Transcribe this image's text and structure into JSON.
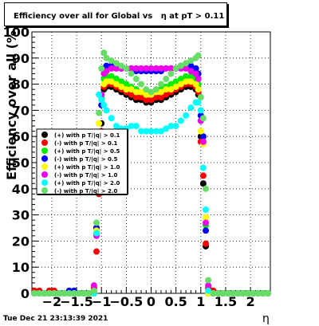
{
  "header": {
    "title": "Efficiency over all for Global vs   η at pT > 0.11"
  },
  "footer": {
    "timestamp": "Tue Dec 21 23:13:39 2021"
  },
  "chart_data": {
    "type": "scatter",
    "title": "Efficiency over all for Global vs   η at pT > 0.11",
    "xlabel": "η",
    "ylabel": "Efficiency over all (%)",
    "xlim": [
      -2.4,
      2.4
    ],
    "ylim": [
      0,
      100
    ],
    "xticks": [
      -2,
      -1.5,
      -1,
      -0.5,
      0,
      0.5,
      1,
      1.5,
      2
    ],
    "xtick_labels": [
      "−2",
      "−1.5",
      "−1",
      "−0.5",
      "0",
      "0.5",
      "1",
      "1.5",
      "2"
    ],
    "yticks": [
      0,
      10,
      20,
      30,
      40,
      50,
      60,
      70,
      80,
      90,
      100
    ],
    "ytick_labels": [
      "0",
      "10",
      "20",
      "30",
      "40",
      "50",
      "60",
      "70",
      "80",
      "90",
      "100"
    ],
    "grid": true,
    "legend_position": "left-middle",
    "series": [
      {
        "name": "(+) with p T/|q| > 0.1",
        "color": "#000000",
        "x": [
          -2.35,
          -2.25,
          -2.15,
          -2.05,
          -1.95,
          -1.85,
          -1.75,
          -1.65,
          -1.55,
          -1.45,
          -1.35,
          -1.25,
          -1.15,
          -1.1,
          -1.05,
          -1.0,
          -0.95,
          -0.9,
          -0.8,
          -0.7,
          -0.6,
          -0.5,
          -0.4,
          -0.3,
          -0.2,
          -0.1,
          0.0,
          0.1,
          0.2,
          0.3,
          0.4,
          0.5,
          0.6,
          0.7,
          0.8,
          0.9,
          0.95,
          1.0,
          1.05,
          1.1,
          1.15,
          1.25,
          1.35,
          1.45,
          1.55,
          1.65,
          1.75,
          1.85,
          1.95,
          2.05,
          2.15,
          2.25,
          2.35
        ],
        "y": [
          0,
          0,
          0,
          0,
          0,
          0,
          0,
          0,
          0,
          0,
          0,
          0,
          1,
          25,
          40,
          65,
          78,
          79,
          79,
          78,
          77,
          76,
          75,
          74,
          74,
          73,
          73,
          74,
          74,
          75,
          76,
          77,
          78,
          79,
          79,
          78,
          76,
          60,
          42,
          18,
          0,
          0,
          0,
          0,
          0,
          0,
          0,
          0,
          0,
          0,
          0,
          0,
          0
        ]
      },
      {
        "name": "(-) with p T/|q| > 0.1",
        "color": "#ff0000",
        "x": [
          -2.35,
          -2.25,
          -2.15,
          -2.05,
          -1.95,
          -1.85,
          -1.75,
          -1.65,
          -1.55,
          -1.45,
          -1.35,
          -1.25,
          -1.15,
          -1.1,
          -1.05,
          -1.0,
          -0.95,
          -0.9,
          -0.8,
          -0.7,
          -0.6,
          -0.5,
          -0.4,
          -0.3,
          -0.2,
          -0.1,
          0.0,
          0.1,
          0.2,
          0.3,
          0.4,
          0.5,
          0.6,
          0.7,
          0.8,
          0.9,
          0.95,
          1.0,
          1.05,
          1.1,
          1.15,
          1.25,
          1.35,
          1.45,
          1.55,
          1.65,
          1.75,
          1.85,
          1.95,
          2.05,
          2.15,
          2.25,
          2.35
        ],
        "y": [
          1,
          1,
          0,
          1,
          1,
          0,
          0,
          0,
          0,
          0,
          0,
          0,
          2,
          16,
          38,
          62,
          79,
          80,
          80,
          79,
          78,
          77,
          76,
          75,
          75,
          74,
          74,
          75,
          75,
          76,
          77,
          78,
          79,
          80,
          80,
          79,
          77,
          58,
          45,
          19,
          2,
          1,
          0,
          0,
          0,
          0,
          0,
          0,
          0,
          0,
          0,
          0,
          0
        ]
      },
      {
        "name": "(+) with p T/|q| > 0.5",
        "color": "#00ee00",
        "x": [
          -2.35,
          -2.25,
          -2.15,
          -2.05,
          -1.95,
          -1.85,
          -1.75,
          -1.65,
          -1.55,
          -1.45,
          -1.35,
          -1.25,
          -1.15,
          -1.1,
          -1.05,
          -1.0,
          -0.95,
          -0.9,
          -0.8,
          -0.7,
          -0.6,
          -0.5,
          -0.4,
          -0.3,
          -0.2,
          -0.1,
          0.0,
          0.1,
          0.2,
          0.3,
          0.4,
          0.5,
          0.6,
          0.7,
          0.8,
          0.9,
          0.95,
          1.0,
          1.05,
          1.1,
          1.15,
          1.25,
          1.35,
          1.45,
          1.55,
          1.65,
          1.75,
          1.85,
          1.95,
          2.05,
          2.15,
          2.25,
          2.35
        ],
        "y": [
          0,
          0,
          0,
          0,
          0,
          0,
          0,
          0,
          0,
          0,
          0,
          0,
          0,
          25,
          60,
          75,
          82,
          83,
          83,
          82,
          81,
          80,
          79,
          78,
          77,
          76,
          76,
          77,
          78,
          79,
          80,
          81,
          82,
          83,
          83,
          82,
          80,
          66,
          58,
          26,
          0,
          0,
          0,
          0,
          0,
          0,
          0,
          0,
          0,
          0,
          0,
          0,
          0
        ]
      },
      {
        "name": "(-) with p T/|q| > 0.5",
        "color": "#0000ff",
        "x": [
          -2.35,
          -2.25,
          -2.15,
          -2.05,
          -1.95,
          -1.85,
          -1.75,
          -1.65,
          -1.55,
          -1.45,
          -1.35,
          -1.25,
          -1.15,
          -1.1,
          -1.05,
          -1.0,
          -0.95,
          -0.9,
          -0.8,
          -0.7,
          -0.6,
          -0.5,
          -0.4,
          -0.3,
          -0.2,
          -0.1,
          0.0,
          0.1,
          0.2,
          0.3,
          0.4,
          0.5,
          0.6,
          0.7,
          0.8,
          0.9,
          0.95,
          1.0,
          1.05,
          1.1,
          1.15,
          1.25,
          1.35,
          1.45,
          1.55,
          1.65,
          1.75,
          1.85,
          1.95,
          2.05,
          2.15,
          2.25,
          2.35
        ],
        "y": [
          0,
          0,
          0,
          0,
          0,
          0,
          0,
          1,
          1,
          0,
          0,
          0,
          0,
          25,
          55,
          72,
          86,
          87,
          87,
          87,
          86,
          86,
          86,
          85,
          85,
          85,
          85,
          85,
          85,
          86,
          86,
          86,
          87,
          87,
          87,
          86,
          84,
          68,
          60,
          24,
          0,
          0,
          0,
          0,
          0,
          0,
          0,
          0,
          0,
          0,
          0,
          0,
          0
        ]
      },
      {
        "name": "(+) with p T/|q| > 1.0",
        "color": "#ffff00",
        "x": [
          -2.35,
          -2.25,
          -2.15,
          -2.05,
          -1.95,
          -1.85,
          -1.75,
          -1.65,
          -1.55,
          -1.45,
          -1.35,
          -1.25,
          -1.15,
          -1.1,
          -1.05,
          -1.0,
          -0.95,
          -0.9,
          -0.8,
          -0.7,
          -0.6,
          -0.5,
          -0.4,
          -0.3,
          -0.2,
          -0.1,
          0.0,
          0.1,
          0.2,
          0.3,
          0.4,
          0.5,
          0.6,
          0.7,
          0.8,
          0.9,
          0.95,
          1.0,
          1.05,
          1.1,
          1.15,
          1.25,
          1.35,
          1.45,
          1.55,
          1.65,
          1.75,
          1.85,
          1.95,
          2.05,
          2.15,
          2.25,
          2.35
        ],
        "y": [
          0,
          0,
          0,
          0,
          0,
          0,
          0,
          0,
          0,
          0,
          0,
          0,
          0,
          24,
          65,
          74,
          80,
          81,
          81,
          80,
          79,
          78,
          78,
          77,
          77,
          76,
          76,
          77,
          77,
          78,
          78,
          79,
          80,
          81,
          81,
          80,
          78,
          62,
          57,
          29,
          0,
          0,
          0,
          0,
          0,
          0,
          0,
          0,
          0,
          0,
          0,
          0,
          0
        ]
      },
      {
        "name": "(-) with p T/|q| > 1.0",
        "color": "#ee00ee",
        "x": [
          -2.35,
          -2.25,
          -2.15,
          -2.05,
          -1.95,
          -1.85,
          -1.75,
          -1.65,
          -1.55,
          -1.45,
          -1.35,
          -1.25,
          -1.15,
          -1.1,
          -1.05,
          -1.0,
          -0.95,
          -0.9,
          -0.8,
          -0.7,
          -0.6,
          -0.5,
          -0.4,
          -0.3,
          -0.2,
          -0.1,
          0.0,
          0.1,
          0.2,
          0.3,
          0.4,
          0.5,
          0.6,
          0.7,
          0.8,
          0.9,
          0.95,
          1.0,
          1.05,
          1.1,
          1.15,
          1.25,
          1.35,
          1.45,
          1.55,
          1.65,
          1.75,
          1.85,
          1.95,
          2.05,
          2.15,
          2.25,
          2.35
        ],
        "y": [
          0,
          0,
          0,
          0,
          0,
          0,
          0,
          0,
          0,
          0,
          0,
          0,
          3,
          22,
          60,
          76,
          84,
          85,
          86,
          86,
          86,
          86,
          86,
          86,
          86,
          86,
          86,
          86,
          86,
          86,
          86,
          86,
          86,
          86,
          85,
          84,
          82,
          66,
          58,
          27,
          3,
          0,
          0,
          0,
          0,
          0,
          0,
          0,
          0,
          0,
          0,
          0,
          0
        ]
      },
      {
        "name": "(+) with p T/|q| > 2.0",
        "color": "#00ffff",
        "x": [
          -2.35,
          -2.25,
          -2.15,
          -2.05,
          -1.95,
          -1.85,
          -1.75,
          -1.65,
          -1.55,
          -1.45,
          -1.35,
          -1.25,
          -1.15,
          -1.1,
          -1.05,
          -1.0,
          -0.95,
          -0.9,
          -0.8,
          -0.7,
          -0.6,
          -0.5,
          -0.4,
          -0.3,
          -0.2,
          -0.1,
          0.0,
          0.1,
          0.2,
          0.3,
          0.4,
          0.5,
          0.6,
          0.7,
          0.8,
          0.9,
          0.95,
          1.0,
          1.05,
          1.1,
          1.15,
          1.25,
          1.35,
          1.45,
          1.55,
          1.65,
          1.75,
          1.85,
          1.95,
          2.05,
          2.15,
          2.25,
          2.35
        ],
        "y": [
          0,
          0,
          0,
          0,
          0,
          0,
          0,
          0,
          0,
          0,
          0,
          0,
          0,
          23,
          76,
          74,
          72,
          70,
          67,
          64,
          63,
          63,
          64,
          64,
          62,
          62,
          62,
          62,
          62,
          63,
          64,
          64,
          66,
          68,
          71,
          73,
          73,
          70,
          48,
          32,
          1,
          0,
          0,
          0,
          0,
          0,
          0,
          0,
          0,
          0,
          0,
          0,
          0
        ]
      },
      {
        "name": "(-) with p T/|q| > 2.0",
        "color": "#66dd66",
        "x": [
          -2.35,
          -2.25,
          -2.15,
          -2.05,
          -1.95,
          -1.85,
          -1.75,
          -1.65,
          -1.55,
          -1.45,
          -1.35,
          -1.25,
          -1.15,
          -1.1,
          -1.05,
          -1.0,
          -0.95,
          -0.9,
          -0.8,
          -0.7,
          -0.6,
          -0.5,
          -0.4,
          -0.3,
          -0.2,
          -0.1,
          0.0,
          0.1,
          0.2,
          0.3,
          0.4,
          0.5,
          0.6,
          0.7,
          0.8,
          0.9,
          0.95,
          1.0,
          1.05,
          1.1,
          1.15,
          1.25,
          1.35,
          1.45,
          1.55,
          1.65,
          1.75,
          1.85,
          1.95,
          2.05,
          2.15,
          2.25,
          2.35
        ],
        "y": [
          0,
          0,
          0,
          0,
          0,
          0,
          0,
          0,
          0,
          0,
          0,
          0,
          1,
          27,
          69,
          86,
          92,
          90,
          89,
          88,
          87,
          86,
          84,
          82,
          80,
          78,
          77,
          78,
          80,
          82,
          84,
          86,
          87,
          88,
          89,
          90,
          91,
          75,
          67,
          40,
          5,
          0,
          0,
          0,
          0,
          0,
          0,
          0,
          0,
          0,
          0,
          0,
          0
        ]
      }
    ]
  }
}
